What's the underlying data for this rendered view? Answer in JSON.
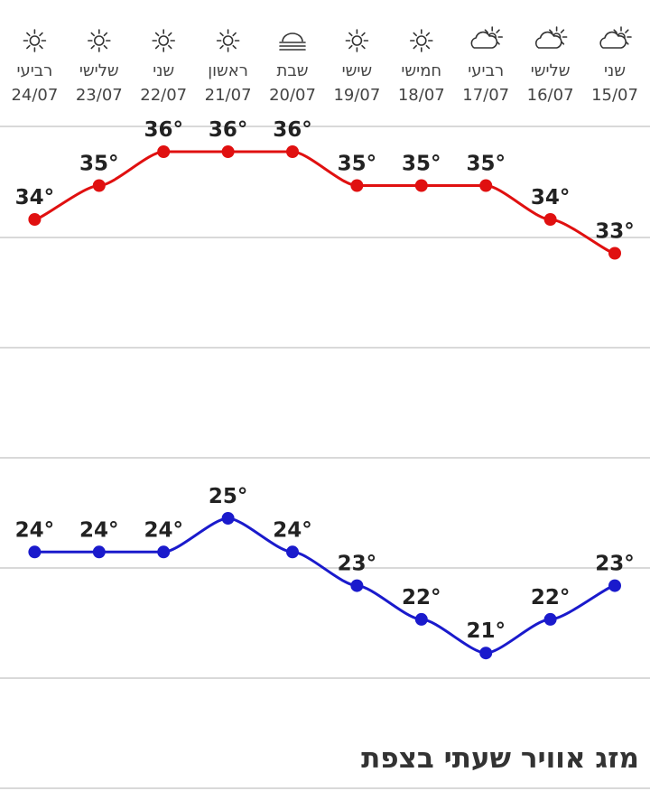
{
  "page_title": "מזג אוויר שעתי בצפת",
  "degree_suffix": "°",
  "colors": {
    "high_line": "#e01010",
    "low_line": "#1a1acc",
    "grid": "#d9d9d9",
    "text": "#222222",
    "day_text": "#444444"
  },
  "chart_data": {
    "type": "line",
    "categories": [
      "15/07",
      "16/07",
      "17/07",
      "18/07",
      "19/07",
      "20/07",
      "21/07",
      "22/07",
      "23/07",
      "24/07"
    ],
    "day_names": [
      "שני",
      "שלישי",
      "רביעי",
      "חמישי",
      "שישי",
      "שבת",
      "ראשון",
      "שני",
      "שלישי",
      "רביעי"
    ],
    "icons": [
      "partly-cloudy-icon",
      "partly-cloudy-icon",
      "partly-cloudy-icon",
      "sun-icon",
      "sun-icon",
      "fog-icon",
      "sun-icon",
      "sun-icon",
      "sun-icon",
      "sun-icon"
    ],
    "x_direction": "right-to-left",
    "series": [
      {
        "values": [
          33,
          34,
          35,
          35,
          35,
          36,
          36,
          36,
          35,
          34
        ]
      },
      {
        "values": [
          23,
          22,
          21,
          22,
          23,
          24,
          25,
          24,
          24,
          24
        ]
      }
    ],
    "grid": true,
    "legend": "none"
  }
}
